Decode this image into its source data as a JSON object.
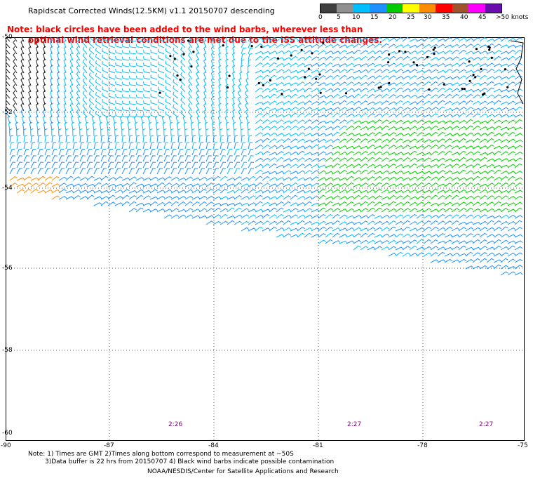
{
  "title": "Rapidscat Corrected Winds(12.5KM) v1.1 20150707 descending",
  "note_line1": "Note: black circles have been added to the wind barbs, wherever less than",
  "note_line2": "optimal wind retrieval conditions are met due to the ISS attitude changes.",
  "colorbar": {
    "labels": [
      "0",
      "5",
      "10",
      "15",
      "20",
      "25",
      "30",
      "35",
      "40",
      "45",
      ">50 knots"
    ],
    "colors": [
      "#404040",
      "#909090",
      "#00bfff",
      "#1e90ff",
      "#00cc00",
      "#ffff00",
      "#ff8c00",
      "#ff0000",
      "#a0522d",
      "#ff00ff",
      "#6a0dad"
    ]
  },
  "lat_labels": [
    "-50",
    "-52",
    "-54",
    "-56",
    "-58",
    "-60"
  ],
  "lon_labels": [
    "-90",
    "-87",
    "-84",
    "-81",
    "-78",
    "-75"
  ],
  "times": [
    "2:26",
    "2:27",
    "2:27"
  ],
  "footnote_line1": "Note: 1) Times are GMT 2)Times along bottom correspond to measurement at ~50S",
  "footnote_line2": "3)Data buffer is 22 hrs from 20150707 4) Black wind barbs indicate possible contamination",
  "credit": "NOAA/NESDIS/Center for Satellite Applications and Research"
}
